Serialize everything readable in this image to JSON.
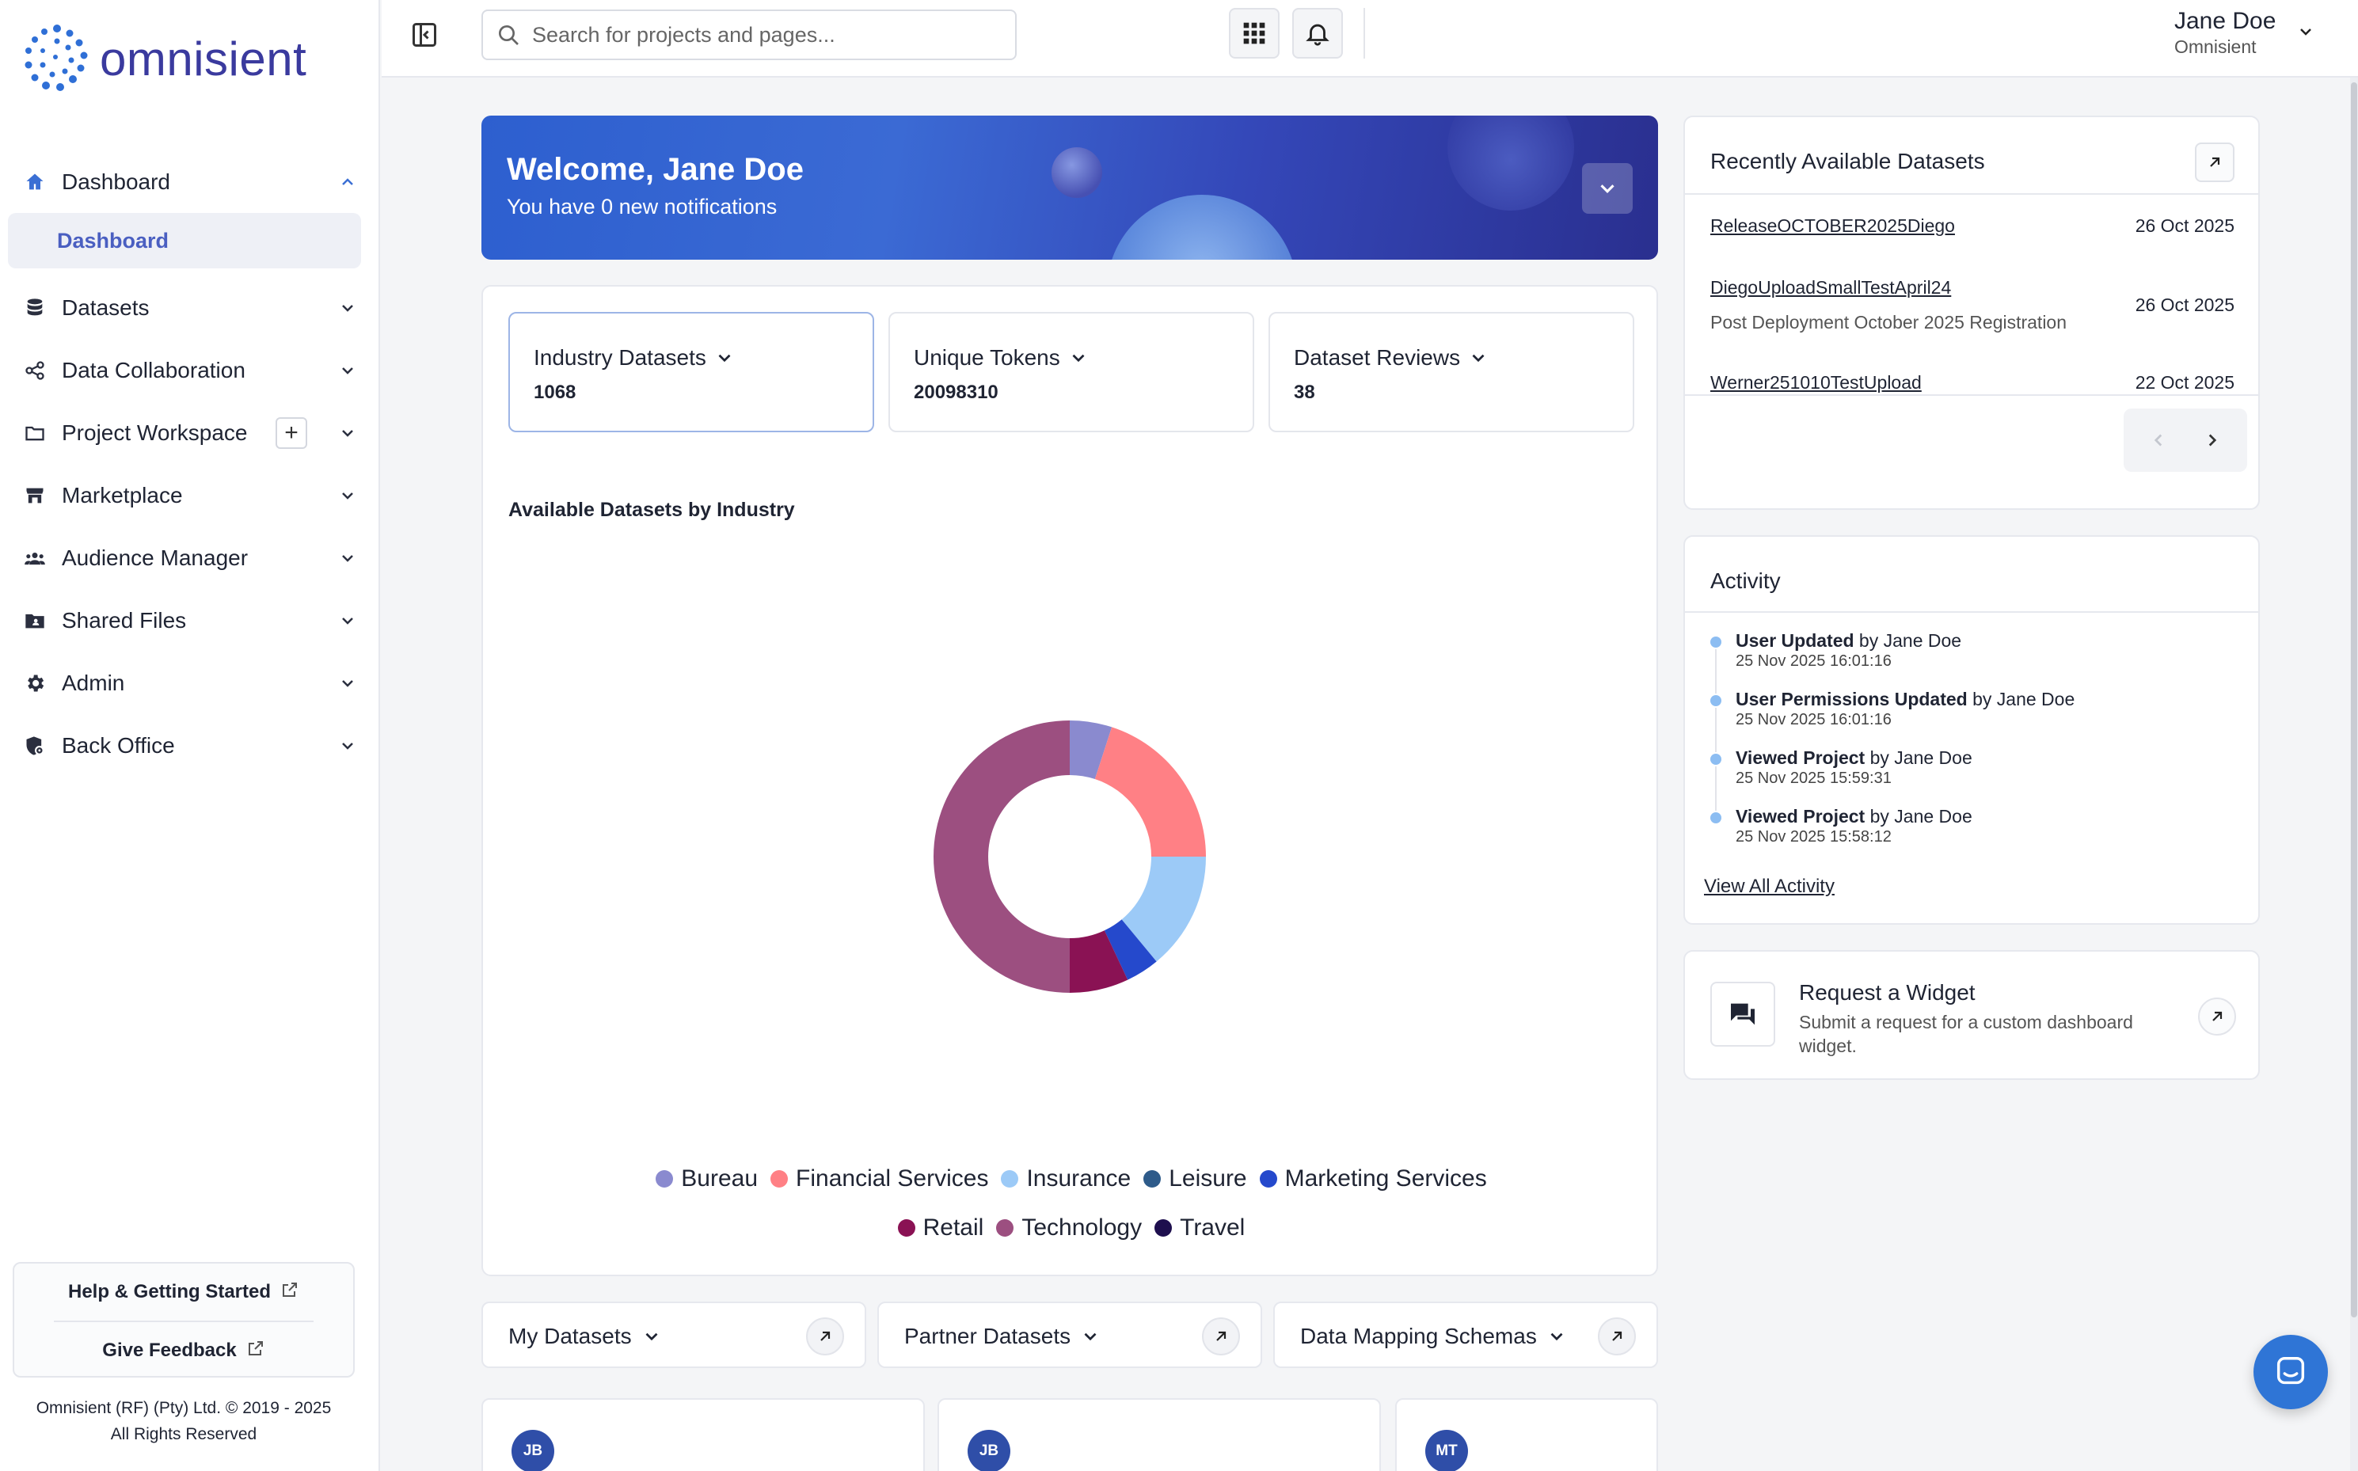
{
  "brand": {
    "name": "omnisient"
  },
  "sidebar": {
    "items": [
      {
        "label": "Dashboard",
        "icon": "home-icon",
        "expanded": true
      },
      {
        "label": "Datasets",
        "icon": "database-icon"
      },
      {
        "label": "Data Collaboration",
        "icon": "share-nodes-icon"
      },
      {
        "label": "Project Workspace",
        "icon": "folder-icon",
        "add": "+"
      },
      {
        "label": "Marketplace",
        "icon": "store-icon"
      },
      {
        "label": "Audience Manager",
        "icon": "people-icon"
      },
      {
        "label": "Shared Files",
        "icon": "shared-folder-icon"
      },
      {
        "label": "Admin",
        "icon": "gear-icon"
      },
      {
        "label": "Back Office",
        "icon": "shield-gear-icon"
      }
    ],
    "sub_items": [
      {
        "label": "Dashboard"
      }
    ],
    "help": "Help & Getting Started",
    "feedback": "Give Feedback",
    "copyright_line1": "Omnisient (RF) (Pty) Ltd. © 2019 - 2025",
    "copyright_line2": "All Rights Reserved"
  },
  "topbar": {
    "search_placeholder": "Search for projects and pages...",
    "user_name": "Jane Doe",
    "user_org": "Omnisient"
  },
  "welcome": {
    "title": "Welcome, Jane Doe",
    "subtitle": "You have 0 new notifications"
  },
  "stats": [
    {
      "label": "Industry Datasets",
      "value": "1068"
    },
    {
      "label": "Unique Tokens",
      "value": "20098310"
    },
    {
      "label": "Dataset Reviews",
      "value": "38"
    }
  ],
  "chart_data": {
    "type": "pie",
    "title": "Available Datasets by Industry",
    "donut": true,
    "legend_position": "bottom",
    "categories": [
      "Bureau",
      "Financial Services",
      "Insurance",
      "Leisure",
      "Marketing Services",
      "Retail",
      "Technology",
      "Travel"
    ],
    "values": [
      5,
      20,
      14,
      0,
      4,
      7,
      50,
      0
    ],
    "colors": [
      "#8a8acf",
      "#ff8085",
      "#9ccaf7",
      "#2e5b8a",
      "#2549cc",
      "#8a1254",
      "#9c4f80",
      "#1e0f4e"
    ]
  },
  "bottom_tabs": [
    {
      "label": "My Datasets"
    },
    {
      "label": "Partner Datasets"
    },
    {
      "label": "Data Mapping Schemas"
    }
  ],
  "bottom_cards": [
    {
      "initials": "JB"
    },
    {
      "initials": "JB"
    },
    {
      "initials": "MT"
    }
  ],
  "recent": {
    "title": "Recently Available Datasets",
    "items": [
      {
        "name": "ReleaseOCTOBER2025Diego",
        "date": "26 Oct 2025"
      },
      {
        "name": "DiegoUploadSmallTestApril24",
        "sub": "Post Deployment October 2025 Registration",
        "date": "26 Oct 2025"
      },
      {
        "name": "Werner251010TestUpload",
        "date": "22 Oct 2025"
      }
    ]
  },
  "activity": {
    "title": "Activity",
    "items": [
      {
        "action": "User Updated",
        "by": " by Jane Doe",
        "time": "25 Nov 2025 16:01:16"
      },
      {
        "action": "User Permissions Updated",
        "by": " by Jane Doe",
        "time": "25 Nov 2025 16:01:16"
      },
      {
        "action": "Viewed Project",
        "by": " by Jane Doe",
        "time": "25 Nov 2025 15:59:31"
      },
      {
        "action": "Viewed Project",
        "by": " by Jane Doe",
        "time": "25 Nov 2025 15:58:12"
      }
    ],
    "view_all": "View All Activity"
  },
  "request_widget": {
    "title": "Request a Widget",
    "description": "Submit a request for a custom dashboard widget."
  }
}
